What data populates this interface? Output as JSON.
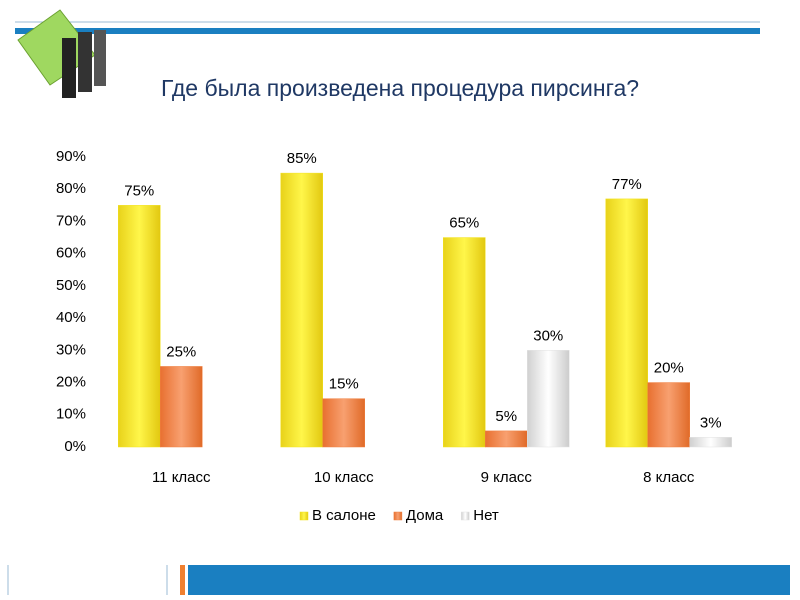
{
  "chart_data": {
    "type": "bar",
    "title": "Где была произведена процедура пирсинга?",
    "categories": [
      "11 класс",
      "10 класс",
      "9 класс",
      "8 класс"
    ],
    "series": [
      {
        "name": "В салоне",
        "color": "#f2e21e",
        "values": [
          75,
          85,
          65,
          77
        ],
        "value_labels": [
          "75%",
          "85%",
          "65%",
          "77%"
        ]
      },
      {
        "name": "Дома",
        "color": "#f08040",
        "values": [
          25,
          15,
          5,
          20
        ],
        "value_labels": [
          "25%",
          "15%",
          "5%",
          "20%"
        ]
      },
      {
        "name": "Нет",
        "color": "#e2e2e2",
        "values": [
          null,
          null,
          30,
          3
        ],
        "value_labels": [
          null,
          null,
          "30%",
          "3%"
        ]
      }
    ],
    "ylim": [
      0,
      90
    ],
    "yticks": [
      {
        "value": 0,
        "label": "0%"
      },
      {
        "value": 10,
        "label": "10%"
      },
      {
        "value": 20,
        "label": "20%"
      },
      {
        "value": 30,
        "label": "30%"
      },
      {
        "value": 40,
        "label": "40%"
      },
      {
        "value": 50,
        "label": "50%"
      },
      {
        "value": 60,
        "label": "60%"
      },
      {
        "value": 70,
        "label": "70%"
      },
      {
        "value": 80,
        "label": "80%"
      },
      {
        "value": 90,
        "label": "90%"
      }
    ],
    "legend": "bottom"
  }
}
